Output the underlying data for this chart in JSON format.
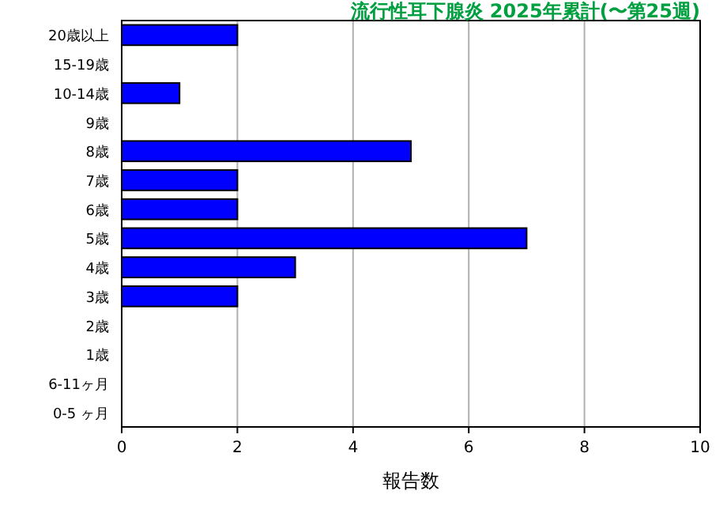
{
  "chart_data": {
    "type": "bar",
    "orientation": "horizontal",
    "title": "流行性耳下腺炎 2025年累計(〜第25週)",
    "xlabel": "報告数",
    "categories": [
      "20歳以上",
      "15-19歳",
      "10-14歳",
      "9歳",
      "8歳",
      "7歳",
      "6歳",
      "5歳",
      "4歳",
      "3歳",
      "2歳",
      "1歳",
      "6-11ヶ月",
      "0-5 ヶ月"
    ],
    "values": [
      2,
      0,
      1,
      0,
      5,
      2,
      2,
      7,
      3,
      2,
      0,
      0,
      0,
      0
    ],
    "color": "#0000ff",
    "xlim": [
      0,
      10
    ],
    "xticks": [
      0,
      2,
      4,
      6,
      8,
      10
    ],
    "grid": "x"
  }
}
